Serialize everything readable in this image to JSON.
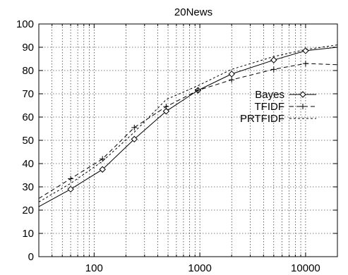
{
  "chart_data": {
    "type": "line",
    "title": "20News",
    "xlabel": "",
    "ylabel": "",
    "x_scale": "log",
    "xlim": [
      30,
      20000
    ],
    "ylim": [
      0,
      100
    ],
    "x_ticks": [
      100,
      1000,
      10000
    ],
    "x_tick_labels": [
      "100",
      "1000",
      "10000"
    ],
    "y_ticks": [
      0,
      10,
      20,
      30,
      40,
      50,
      60,
      70,
      80,
      90,
      100
    ],
    "y_tick_labels": [
      "0",
      "10",
      "20",
      "30",
      "40",
      "50",
      "60",
      "70",
      "80",
      "90",
      "100"
    ],
    "grid": true,
    "legend_position": "right",
    "series": [
      {
        "name": "Bayes",
        "style": "solid",
        "marker": "diamond",
        "color": "#000000",
        "x": [
          30,
          60,
          120,
          240,
          480,
          960,
          2000,
          5000,
          10000,
          20000
        ],
        "y": [
          21.5,
          29,
          37.5,
          50.5,
          62.5,
          71.5,
          78.5,
          84.5,
          88.5,
          90
        ]
      },
      {
        "name": "TFIDF",
        "style": "dashed",
        "marker": "plus",
        "color": "#000000",
        "x": [
          30,
          60,
          120,
          240,
          480,
          960,
          2000,
          5000,
          10000,
          20000
        ],
        "y": [
          25,
          33.5,
          42,
          55.5,
          64.5,
          71.5,
          76,
          80.5,
          83,
          82.5
        ]
      },
      {
        "name": "PRTFIDF",
        "style": "dotted",
        "marker": "none",
        "color": "#000000",
        "x": [
          30,
          60,
          120,
          240,
          480,
          960,
          2000,
          5000,
          10000,
          20000
        ],
        "y": [
          23.5,
          31.5,
          41,
          53.5,
          67.5,
          73.5,
          80.5,
          86,
          89,
          91
        ]
      }
    ]
  }
}
